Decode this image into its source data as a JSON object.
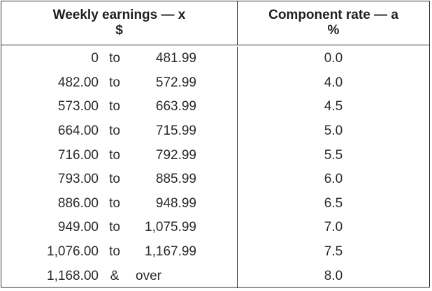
{
  "table": {
    "header": {
      "col1_line1": "Weekly earnings — x",
      "col1_line2": "$",
      "col2_line1": "Component rate — a",
      "col2_line2": "%"
    },
    "rows": [
      {
        "from": "0",
        "sep": "to",
        "to": "481.99",
        "rate": "0.0"
      },
      {
        "from": "482.00",
        "sep": "to",
        "to": "572.99",
        "rate": "4.0"
      },
      {
        "from": "573.00",
        "sep": "to",
        "to": "663.99",
        "rate": "4.5"
      },
      {
        "from": "664.00",
        "sep": "to",
        "to": "715.99",
        "rate": "5.0"
      },
      {
        "from": "716.00",
        "sep": "to",
        "to": "792.99",
        "rate": "5.5"
      },
      {
        "from": "793.00",
        "sep": "to",
        "to": "885.99",
        "rate": "6.0"
      },
      {
        "from": "886.00",
        "sep": "to",
        "to": "948.99",
        "rate": "6.5"
      },
      {
        "from": "949.00",
        "sep": "to",
        "to": "1,075.99",
        "rate": "7.0"
      },
      {
        "from": "1,076.00",
        "sep": "to",
        "to": "1,167.99",
        "rate": "7.5"
      },
      {
        "from": "1,168.00",
        "sep": "&",
        "to": "over",
        "rate": "8.0"
      }
    ]
  }
}
